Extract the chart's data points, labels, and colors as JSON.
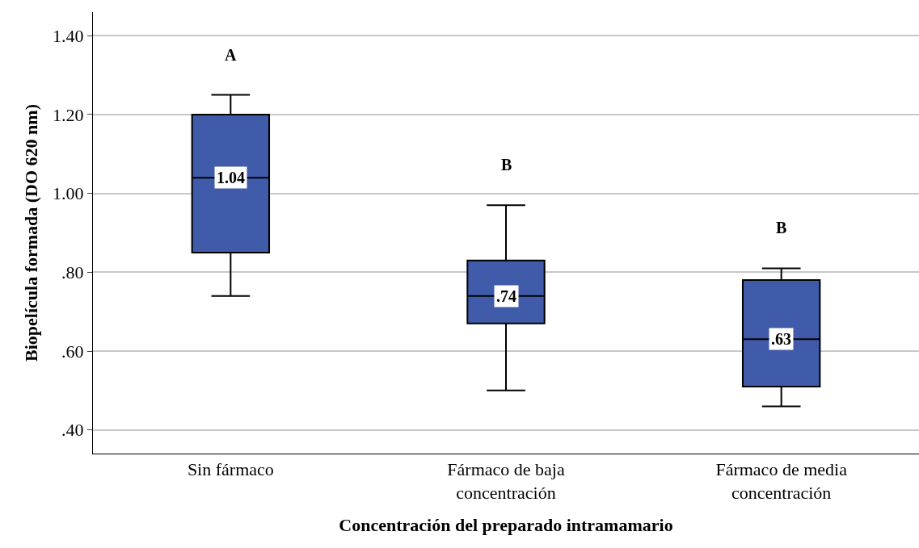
{
  "chart_data": {
    "type": "box",
    "xlabel": "Concentración del preparado intramamario",
    "ylabel": "Biopelícula formada (DO 620 nm)",
    "categories": [
      "Sin fármaco",
      "Fármaco de baja\nconcentración",
      "Fármaco de media\nconcentración"
    ],
    "color": "#3f5ba9",
    "boxes": [
      {
        "low": 0.74,
        "q1": 0.85,
        "median": 1.04,
        "q3": 1.2,
        "high": 1.25
      },
      {
        "low": 0.5,
        "q1": 0.67,
        "median": 0.74,
        "q3": 0.83,
        "high": 0.97
      },
      {
        "low": 0.46,
        "q1": 0.51,
        "median": 0.63,
        "q3": 0.78,
        "high": 0.81
      }
    ],
    "value_labels": [
      "1.04",
      ".74",
      ".63"
    ],
    "annotations": [
      "A",
      "B",
      "B"
    ],
    "ylim": [
      0.34,
      1.46
    ],
    "yticks": [
      {
        "value": 0.4,
        "label": ".40"
      },
      {
        "value": 0.6,
        "label": ".60"
      },
      {
        "value": 0.8,
        "label": ".80"
      },
      {
        "value": 1.0,
        "label": "1.00"
      },
      {
        "value": 1.2,
        "label": "1.20"
      },
      {
        "value": 1.4,
        "label": "1.40"
      }
    ],
    "grid": "y"
  }
}
